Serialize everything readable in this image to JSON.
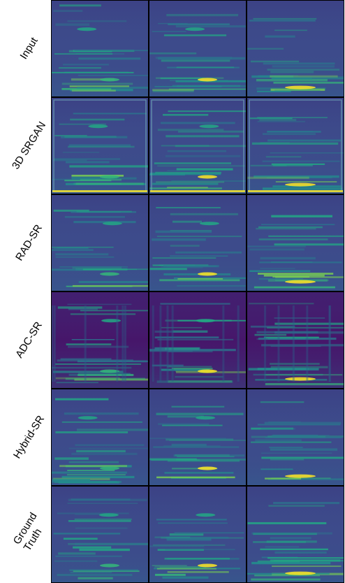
{
  "rows": [
    {
      "label": [
        "Input"
      ]
    },
    {
      "label": [
        "3D SRGAN"
      ]
    },
    {
      "label": [
        "RAD-SR"
      ]
    },
    {
      "label": [
        "ADC-SR"
      ]
    },
    {
      "label": [
        "Hybrid-SR"
      ]
    },
    {
      "label": [
        "Ground",
        "Truth"
      ]
    }
  ]
}
